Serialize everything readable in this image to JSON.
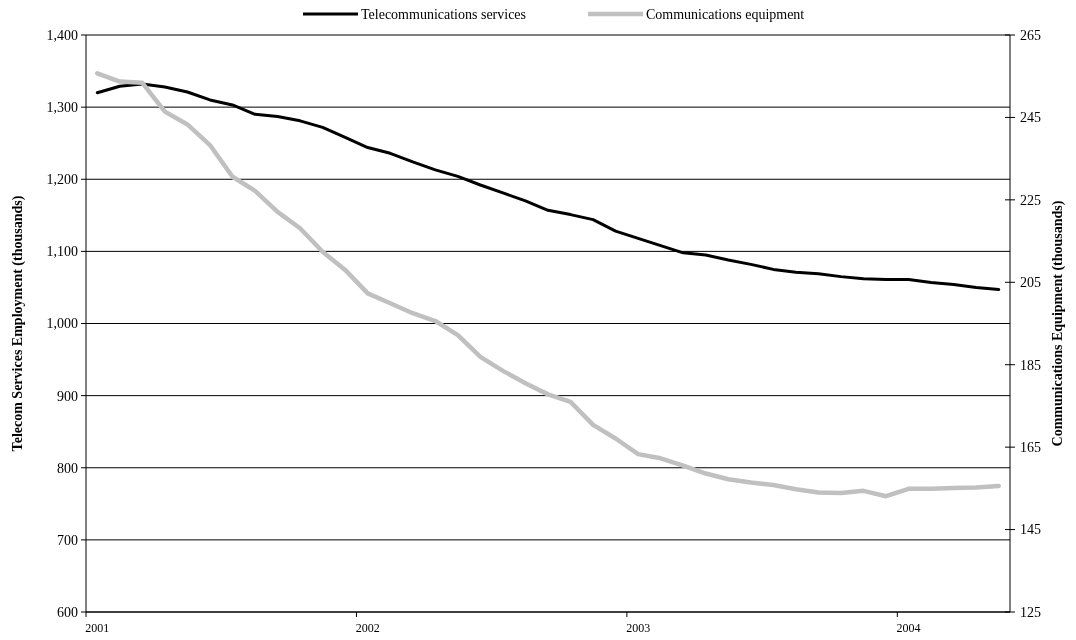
{
  "chart_data": {
    "type": "line",
    "categories": [
      "2001",
      null,
      null,
      null,
      null,
      null,
      null,
      null,
      null,
      null,
      null,
      null,
      "2002",
      null,
      null,
      null,
      null,
      null,
      null,
      null,
      null,
      null,
      null,
      null,
      "2003",
      null,
      null,
      null,
      null,
      null,
      null,
      null,
      null,
      null,
      null,
      null,
      "2004",
      null,
      null,
      null,
      null
    ],
    "ylabel": "Telecom Services Employment (thousands)",
    "y2label": "Communications Equipment (thousands)",
    "ylim": [
      600,
      1400
    ],
    "yticks": [
      {
        "value": 600,
        "label": "600"
      },
      {
        "value": 700,
        "label": "700"
      },
      {
        "value": 800,
        "label": "800"
      },
      {
        "value": 900,
        "label": "900"
      },
      {
        "value": 1000,
        "label": "1,000"
      },
      {
        "value": 1100,
        "label": "1,100"
      },
      {
        "value": 1200,
        "label": "1,200"
      },
      {
        "value": 1300,
        "label": "1,300"
      },
      {
        "value": 1400,
        "label": "1,400"
      }
    ],
    "y2lim": [
      125,
      265
    ],
    "y2ticks": [
      125,
      145,
      165,
      185,
      205,
      225,
      245,
      265
    ],
    "grid": "y",
    "legend": "top",
    "series": [
      {
        "name": "Telecommunications services",
        "color": "#000000",
        "values": [
          1320,
          1329,
          1332,
          1328,
          1321,
          1310,
          1303,
          1290,
          1287,
          1281,
          1272,
          1258,
          1244,
          1236,
          1224,
          1213,
          1204,
          1192,
          1181,
          1170,
          1157,
          1151,
          1144,
          1128,
          1118,
          1108,
          1098,
          1095,
          1088,
          1082,
          1075,
          1071,
          1069,
          1065,
          1062,
          1061,
          1061,
          1057,
          1054,
          1050,
          1047
        ]
      },
      {
        "name": "Communications equipment",
        "color": "#c0c0c0",
        "axis": "y2",
        "values": [
          255.7,
          253.7,
          253.4,
          246.4,
          243.3,
          238.3,
          230.6,
          227.2,
          222.1,
          218.1,
          212.4,
          208,
          202.3,
          199.9,
          197.5,
          195.6,
          192.2,
          186.9,
          183.5,
          180.5,
          177.8,
          176,
          170.4,
          167.1,
          163.3,
          162.3,
          160.5,
          158.6,
          157.2,
          156.4,
          155.8,
          154.8,
          154,
          153.9,
          154.4,
          153.1,
          154.9,
          154.9,
          155.1,
          155.2,
          155.6
        ]
      }
    ]
  }
}
